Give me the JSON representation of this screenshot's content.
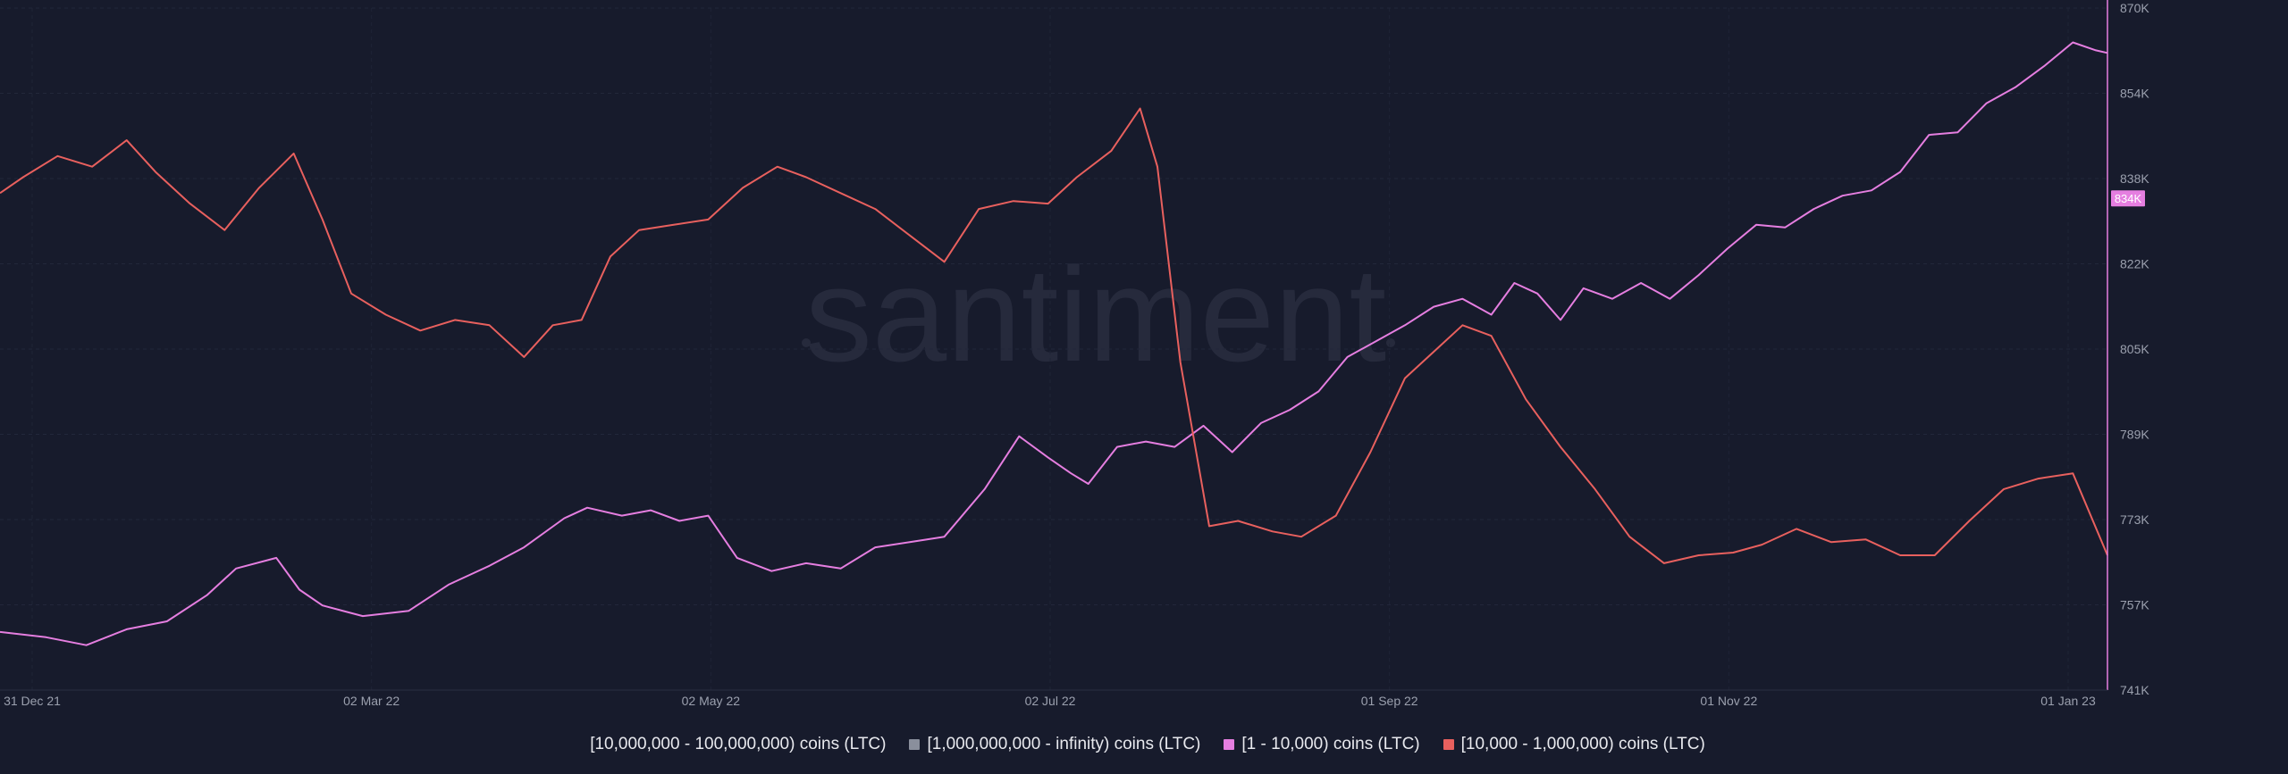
{
  "watermark": "santiment",
  "chart_data": {
    "type": "line",
    "x_ticks": [
      "31 Dec 21",
      "02 Mar 22",
      "02 May 22",
      "02 Jul 22",
      "01 Sep 22",
      "01 Nov 22",
      "01 Jan 23"
    ],
    "x_start": "2021-12-31",
    "x_end": "2023-01-01",
    "y_right_ticks": [
      "870K",
      "854K",
      "838K",
      "822K",
      "805K",
      "789K",
      "773K",
      "757K",
      "741K"
    ],
    "y_right_range": [
      741000,
      870000
    ],
    "current_value_badge": "834K",
    "grid": true,
    "legend_position": "bottom",
    "legend": [
      {
        "label": "[10,000,000 - 100,000,000) coins (LTC)",
        "color": "none"
      },
      {
        "label": "[1,000,000,000 - infinity) coins (LTC)",
        "color": "#8a8f9c"
      },
      {
        "label": "[1 - 10,000) coins (LTC)",
        "color": "#e57ee0"
      },
      {
        "label": "[10,000 - 1,000,000) coins (LTC)",
        "color": "#e8605e"
      }
    ],
    "series": [
      {
        "name": "[1 - 10,000) coins (LTC)",
        "color": "#e57ee0",
        "axis": "right",
        "points": [
          [
            "2021-12-31",
            752000
          ],
          [
            "2022-01-08",
            751000
          ],
          [
            "2022-01-15",
            749500
          ],
          [
            "2022-01-22",
            752500
          ],
          [
            "2022-01-29",
            754000
          ],
          [
            "2022-02-05",
            759000
          ],
          [
            "2022-02-10",
            764000
          ],
          [
            "2022-02-17",
            766000
          ],
          [
            "2022-02-21",
            760000
          ],
          [
            "2022-02-25",
            757000
          ],
          [
            "2022-03-04",
            755000
          ],
          [
            "2022-03-12",
            756000
          ],
          [
            "2022-03-19",
            761000
          ],
          [
            "2022-03-26",
            764500
          ],
          [
            "2022-04-01",
            768000
          ],
          [
            "2022-04-08",
            773500
          ],
          [
            "2022-04-12",
            775500
          ],
          [
            "2022-04-18",
            774000
          ],
          [
            "2022-04-23",
            775000
          ],
          [
            "2022-04-28",
            773000
          ],
          [
            "2022-05-03",
            774000
          ],
          [
            "2022-05-08",
            766000
          ],
          [
            "2022-05-14",
            763500
          ],
          [
            "2022-05-20",
            765000
          ],
          [
            "2022-05-26",
            764000
          ],
          [
            "2022-06-01",
            768000
          ],
          [
            "2022-06-07",
            769000
          ],
          [
            "2022-06-13",
            770000
          ],
          [
            "2022-06-20",
            779000
          ],
          [
            "2022-06-26",
            789000
          ],
          [
            "2022-07-01",
            785000
          ],
          [
            "2022-07-05",
            782000
          ],
          [
            "2022-07-08",
            780000
          ],
          [
            "2022-07-13",
            787000
          ],
          [
            "2022-07-18",
            788000
          ],
          [
            "2022-07-23",
            787000
          ],
          [
            "2022-07-28",
            791000
          ],
          [
            "2022-08-02",
            786000
          ],
          [
            "2022-08-07",
            791500
          ],
          [
            "2022-08-12",
            794000
          ],
          [
            "2022-08-17",
            797500
          ],
          [
            "2022-08-22",
            804000
          ],
          [
            "2022-08-27",
            807000
          ],
          [
            "2022-09-01",
            810000
          ],
          [
            "2022-09-06",
            813500
          ],
          [
            "2022-09-11",
            815000
          ],
          [
            "2022-09-16",
            812000
          ],
          [
            "2022-09-20",
            818000
          ],
          [
            "2022-09-24",
            816000
          ],
          [
            "2022-09-28",
            811000
          ],
          [
            "2022-10-02",
            817000
          ],
          [
            "2022-10-07",
            815000
          ],
          [
            "2022-10-12",
            818000
          ],
          [
            "2022-10-17",
            815000
          ],
          [
            "2022-10-22",
            819500
          ],
          [
            "2022-10-27",
            824500
          ],
          [
            "2022-11-01",
            829000
          ],
          [
            "2022-11-06",
            828500
          ],
          [
            "2022-11-11",
            832000
          ],
          [
            "2022-11-16",
            834500
          ],
          [
            "2022-11-21",
            835500
          ],
          [
            "2022-11-26",
            839000
          ],
          [
            "2022-12-01",
            846000
          ],
          [
            "2022-12-06",
            846500
          ],
          [
            "2022-12-11",
            852000
          ],
          [
            "2022-12-16",
            855000
          ],
          [
            "2022-12-21",
            859000
          ],
          [
            "2022-12-26",
            863500
          ],
          [
            "2022-12-30",
            862000
          ],
          [
            "2023-01-01",
            861500
          ]
        ]
      },
      {
        "name": "[10,000 - 1,000,000) coins (LTC)",
        "color": "#e8605e",
        "axis": "right",
        "points": [
          [
            "2021-12-31",
            835000
          ],
          [
            "2022-01-04",
            838000
          ],
          [
            "2022-01-10",
            842000
          ],
          [
            "2022-01-16",
            840000
          ],
          [
            "2022-01-22",
            845000
          ],
          [
            "2022-01-27",
            839000
          ],
          [
            "2022-02-02",
            833000
          ],
          [
            "2022-02-08",
            828000
          ],
          [
            "2022-02-14",
            836000
          ],
          [
            "2022-02-20",
            842500
          ],
          [
            "2022-02-25",
            830000
          ],
          [
            "2022-03-02",
            816000
          ],
          [
            "2022-03-08",
            812000
          ],
          [
            "2022-03-14",
            809000
          ],
          [
            "2022-03-20",
            811000
          ],
          [
            "2022-03-26",
            810000
          ],
          [
            "2022-04-01",
            804000
          ],
          [
            "2022-04-06",
            810000
          ],
          [
            "2022-04-11",
            811000
          ],
          [
            "2022-04-16",
            823000
          ],
          [
            "2022-04-21",
            828000
          ],
          [
            "2022-04-27",
            829000
          ],
          [
            "2022-05-03",
            830000
          ],
          [
            "2022-05-09",
            836000
          ],
          [
            "2022-05-15",
            840000
          ],
          [
            "2022-05-20",
            838000
          ],
          [
            "2022-05-26",
            835000
          ],
          [
            "2022-06-01",
            832000
          ],
          [
            "2022-06-07",
            827000
          ],
          [
            "2022-06-13",
            822000
          ],
          [
            "2022-06-19",
            832000
          ],
          [
            "2022-06-25",
            833500
          ],
          [
            "2022-07-01",
            833000
          ],
          [
            "2022-07-06",
            838000
          ],
          [
            "2022-07-12",
            843000
          ],
          [
            "2022-07-17",
            851000
          ],
          [
            "2022-07-20",
            840000
          ],
          [
            "2022-07-24",
            803000
          ],
          [
            "2022-07-29",
            772000
          ],
          [
            "2022-08-03",
            773000
          ],
          [
            "2022-08-09",
            771000
          ],
          [
            "2022-08-14",
            770000
          ],
          [
            "2022-08-20",
            774000
          ],
          [
            "2022-08-26",
            786000
          ],
          [
            "2022-09-01",
            800000
          ],
          [
            "2022-09-06",
            805000
          ],
          [
            "2022-09-11",
            810000
          ],
          [
            "2022-09-16",
            808000
          ],
          [
            "2022-09-22",
            796000
          ],
          [
            "2022-09-28",
            787000
          ],
          [
            "2022-10-04",
            779000
          ],
          [
            "2022-10-10",
            770000
          ],
          [
            "2022-10-16",
            765000
          ],
          [
            "2022-10-22",
            766500
          ],
          [
            "2022-10-28",
            767000
          ],
          [
            "2022-11-02",
            768500
          ],
          [
            "2022-11-08",
            771500
          ],
          [
            "2022-11-14",
            769000
          ],
          [
            "2022-11-20",
            769500
          ],
          [
            "2022-11-26",
            766500
          ],
          [
            "2022-12-02",
            766500
          ],
          [
            "2022-12-08",
            773000
          ],
          [
            "2022-12-14",
            779000
          ],
          [
            "2022-12-20",
            781000
          ],
          [
            "2022-12-26",
            782000
          ],
          [
            "2023-01-01",
            766500
          ]
        ]
      }
    ]
  }
}
